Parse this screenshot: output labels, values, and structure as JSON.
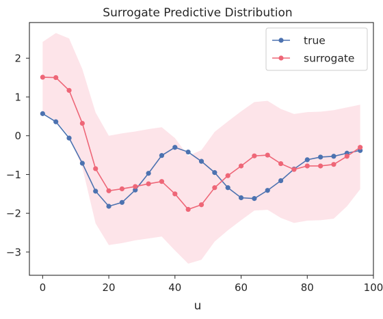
{
  "chart_data": {
    "type": "line",
    "title": "Surrogate Predictive Distribution",
    "xlabel": "u",
    "ylabel": "",
    "xlim": [
      -4,
      100
    ],
    "ylim": [
      -3.6,
      2.92
    ],
    "x_ticks": [
      0,
      20,
      40,
      60,
      80,
      100
    ],
    "y_ticks": [
      -3,
      -2,
      -1,
      0,
      1,
      2
    ],
    "x_tick_labels": [
      "0",
      "20",
      "40",
      "60",
      "80",
      "100"
    ],
    "y_tick_labels": [
      "−3",
      "−2",
      "−1",
      "0",
      "1",
      "2"
    ],
    "grid": false,
    "legend_position": "top-right",
    "x": [
      0,
      4,
      8,
      12,
      16,
      20,
      24,
      28,
      32,
      36,
      40,
      44,
      48,
      52,
      56,
      60,
      64,
      68,
      72,
      76,
      80,
      84,
      88,
      92,
      96
    ],
    "series": [
      {
        "name": "true",
        "color": "#4c72b0",
        "values": [
          0.57,
          0.36,
          -0.06,
          -0.71,
          -1.43,
          -1.82,
          -1.72,
          -1.4,
          -0.97,
          -0.51,
          -0.3,
          -0.42,
          -0.66,
          -0.95,
          -1.34,
          -1.6,
          -1.62,
          -1.41,
          -1.16,
          -0.86,
          -0.62,
          -0.55,
          -0.53,
          -0.45,
          -0.38
        ]
      },
      {
        "name": "surrogate",
        "color": "#ee6677",
        "values": [
          1.51,
          1.5,
          1.17,
          0.32,
          -0.85,
          -1.42,
          -1.37,
          -1.31,
          -1.24,
          -1.18,
          -1.5,
          -1.9,
          -1.78,
          -1.34,
          -1.03,
          -0.78,
          -0.52,
          -0.5,
          -0.72,
          -0.87,
          -0.78,
          -0.78,
          -0.74,
          -0.53,
          -0.3
        ]
      }
    ],
    "band": {
      "color": "#fde4e9",
      "upper": [
        2.42,
        2.65,
        2.51,
        1.72,
        0.6,
        0.0,
        0.06,
        0.11,
        0.17,
        0.22,
        -0.06,
        -0.52,
        -0.37,
        0.1,
        0.37,
        0.63,
        0.87,
        0.9,
        0.69,
        0.56,
        0.61,
        0.62,
        0.66,
        0.73,
        0.8
      ],
      "lower": [
        0.6,
        0.38,
        0.0,
        -0.82,
        -2.26,
        -2.82,
        -2.77,
        -2.7,
        -2.65,
        -2.6,
        -2.96,
        -3.3,
        -3.2,
        -2.73,
        -2.44,
        -2.18,
        -1.93,
        -1.91,
        -2.12,
        -2.25,
        -2.19,
        -2.18,
        -2.14,
        -1.82,
        -1.38
      ]
    }
  }
}
